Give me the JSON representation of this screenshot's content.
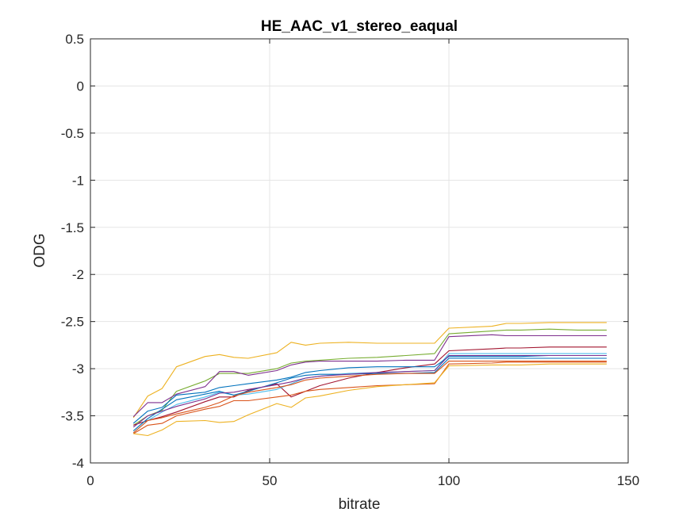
{
  "chart_data": {
    "type": "line",
    "title": "HE_AAC_v1_stereo_eaqual",
    "xlabel": "bitrate",
    "ylabel": "ODG",
    "xlim": [
      0,
      150
    ],
    "ylim": [
      -4,
      0.5
    ],
    "xticks": [
      0,
      50,
      100,
      150
    ],
    "xtick_labels": [
      "0",
      "50",
      "100",
      "150"
    ],
    "yticks": [
      0.5,
      0,
      -0.5,
      -1,
      -1.5,
      -2,
      -2.5,
      -3,
      -3.5,
      -4
    ],
    "ytick_labels": [
      "0.5",
      "0",
      "-0.5",
      "-1",
      "-1.5",
      "-2",
      "-2.5",
      "-3",
      "-3.5",
      "-4"
    ],
    "grid": true,
    "grid_color": "#e5e5e5",
    "axis_color": "#262626",
    "x": [
      12,
      16,
      20,
      24,
      32,
      36,
      40,
      44,
      52,
      56,
      60,
      64,
      72,
      80,
      88,
      96,
      100,
      112,
      116,
      120,
      128,
      136,
      144
    ],
    "series": [
      {
        "color": "#EDB120",
        "values": [
          -3.52,
          -3.29,
          -3.21,
          -2.98,
          -2.87,
          -2.85,
          -2.88,
          -2.89,
          -2.83,
          -2.72,
          -2.75,
          -2.73,
          -2.72,
          -2.73,
          -2.73,
          -2.73,
          -2.57,
          -2.55,
          -2.52,
          -2.52,
          -2.51,
          -2.51,
          -2.51
        ]
      },
      {
        "color": "#77AC30",
        "values": [
          -3.6,
          -3.5,
          -3.44,
          -3.24,
          -3.13,
          -3.05,
          -3.05,
          -3.05,
          -3.0,
          -2.94,
          -2.92,
          -2.91,
          -2.89,
          -2.88,
          -2.86,
          -2.84,
          -2.63,
          -2.6,
          -2.59,
          -2.59,
          -2.58,
          -2.59,
          -2.59
        ]
      },
      {
        "color": "#7E2F8E",
        "values": [
          -3.51,
          -3.36,
          -3.36,
          -3.27,
          -3.19,
          -3.03,
          -3.03,
          -3.07,
          -3.02,
          -2.96,
          -2.93,
          -2.92,
          -2.92,
          -2.92,
          -2.91,
          -2.91,
          -2.66,
          -2.64,
          -2.65,
          -2.65,
          -2.65,
          -2.65,
          -2.65
        ]
      },
      {
        "color": "#A2142F",
        "values": [
          -3.6,
          -3.55,
          -3.51,
          -3.46,
          -3.35,
          -3.3,
          -3.3,
          -3.23,
          -3.16,
          -3.3,
          -3.24,
          -3.18,
          -3.1,
          -3.04,
          -2.99,
          -2.95,
          -2.81,
          -2.79,
          -2.78,
          -2.78,
          -2.77,
          -2.77,
          -2.77
        ]
      },
      {
        "color": "#4DBEEE",
        "values": [
          -3.68,
          -3.55,
          -3.46,
          -3.38,
          -3.3,
          -3.25,
          -3.28,
          -3.27,
          -3.22,
          -3.16,
          -3.1,
          -3.08,
          -3.05,
          -3.04,
          -3.03,
          -3.02,
          -2.84,
          -2.84,
          -2.84,
          -2.84,
          -2.84,
          -2.84,
          -2.84
        ]
      },
      {
        "color": "#0072BD",
        "values": [
          -3.58,
          -3.45,
          -3.41,
          -3.28,
          -3.25,
          -3.2,
          -3.18,
          -3.16,
          -3.12,
          -3.09,
          -3.04,
          -3.02,
          -2.99,
          -2.98,
          -2.98,
          -2.98,
          -2.87,
          -2.87,
          -2.87,
          -2.87,
          -2.86,
          -2.86,
          -2.86
        ]
      },
      {
        "color": "#D95319",
        "values": [
          -3.69,
          -3.6,
          -3.58,
          -3.5,
          -3.43,
          -3.4,
          -3.34,
          -3.34,
          -3.3,
          -3.28,
          -3.24,
          -3.22,
          -3.2,
          -3.18,
          -3.17,
          -3.16,
          -2.95,
          -2.94,
          -2.93,
          -2.93,
          -2.93,
          -2.93,
          -2.93
        ]
      },
      {
        "color": "#EDB120",
        "values": [
          -3.69,
          -3.71,
          -3.65,
          -3.56,
          -3.55,
          -3.57,
          -3.56,
          -3.49,
          -3.37,
          -3.41,
          -3.31,
          -3.29,
          -3.23,
          -3.19,
          -3.17,
          -3.15,
          -2.97,
          -2.96,
          -2.96,
          -2.96,
          -2.95,
          -2.95,
          -2.95
        ]
      },
      {
        "color": "#0072BD",
        "values": [
          -3.66,
          -3.53,
          -3.43,
          -3.33,
          -3.27,
          -3.24,
          -3.28,
          -3.24,
          -3.15,
          -3.1,
          -3.07,
          -3.06,
          -3.06,
          -3.05,
          -3.05,
          -3.04,
          -2.89,
          -2.89,
          -2.89,
          -2.89,
          -2.89,
          -2.89,
          -2.89
        ]
      },
      {
        "color": "#D95319",
        "values": [
          -3.68,
          -3.55,
          -3.52,
          -3.48,
          -3.41,
          -3.36,
          -3.29,
          -3.25,
          -3.2,
          -3.17,
          -3.12,
          -3.1,
          -3.08,
          -3.06,
          -3.05,
          -3.05,
          -2.92,
          -2.92,
          -2.92,
          -2.92,
          -2.92,
          -2.92,
          -2.92
        ]
      },
      {
        "color": "#7E2F8E",
        "values": [
          -3.62,
          -3.5,
          -3.45,
          -3.4,
          -3.32,
          -3.26,
          -3.25,
          -3.22,
          -3.17,
          -3.14,
          -3.1,
          -3.08,
          -3.06,
          -3.04,
          -3.03,
          -3.02,
          -2.86,
          -2.86,
          -2.86,
          -2.86,
          -2.86,
          -2.86,
          -2.86
        ]
      }
    ]
  }
}
